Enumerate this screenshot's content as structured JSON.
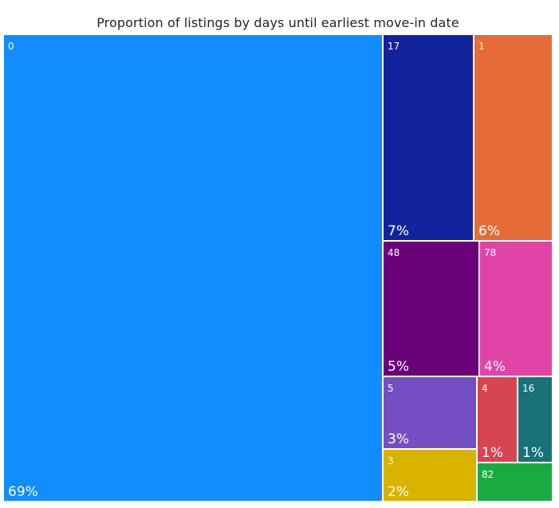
{
  "chart_data": {
    "type": "treemap",
    "title": "Proportion of listings by days until earliest move-in date",
    "tiles": [
      {
        "category": "0",
        "label": "69%",
        "color": "#118DFF"
      },
      {
        "category": "17",
        "label": "7%",
        "color": "#12239E"
      },
      {
        "category": "1",
        "label": "6%",
        "color": "#E66C37"
      },
      {
        "category": "48",
        "label": "5%",
        "color": "#6B007B"
      },
      {
        "category": "78",
        "label": "4%",
        "color": "#E044A7"
      },
      {
        "category": "5",
        "label": "3%",
        "color": "#744EC2"
      },
      {
        "category": "3",
        "label": "2%",
        "color": "#D9B300"
      },
      {
        "category": "4",
        "label": "1%",
        "color": "#D64550"
      },
      {
        "category": "16",
        "label": "1%",
        "color": "#197278"
      },
      {
        "category": "82",
        "label": "",
        "color": "#1AAB40"
      }
    ]
  }
}
